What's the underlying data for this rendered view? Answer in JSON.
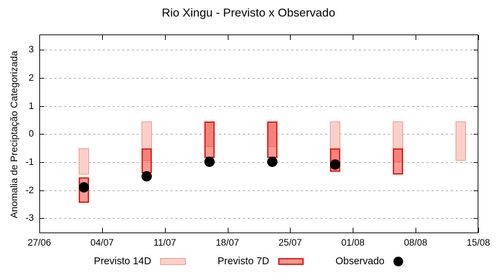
{
  "chart_data": {
    "type": "bar",
    "subtype": "range-bars-with-observed-points",
    "title": "Rio Xingu - Previsto x Observado",
    "ylabel": "Anomalia de Preciptação Categorizada",
    "xlabel": "",
    "ylim": [
      -3.55,
      3.55
    ],
    "yticks": [
      3,
      2,
      1,
      0,
      -1,
      -2,
      -3
    ],
    "xtick_labels": [
      "27/06",
      "04/07",
      "11/07",
      "18/07",
      "25/07",
      "01/08",
      "08/08",
      "15/08"
    ],
    "xtick_interval_days": 7,
    "grid": "horizontal-dotted",
    "legend_position": "bottom",
    "colors": {
      "prev14_fill": "#fbcfc9",
      "prev14_border": "#f0988e",
      "prev7_fill": "rgba(240,55,45,0.5)",
      "prev7_border": "#e8231d",
      "observado": "#000000",
      "grid": "#a9a9a9",
      "axis": "#000000"
    },
    "series": [
      {
        "name": "Previsto 14D",
        "key": "prev14",
        "type": "range-bar"
      },
      {
        "name": "Previsto 7D",
        "key": "prev7",
        "type": "range-bar"
      },
      {
        "name": "Observado",
        "key": "obs",
        "type": "scatter"
      }
    ],
    "points": [
      {
        "date_est": "02/07",
        "day": 5,
        "prev14": [
          -1.45,
          -0.5
        ],
        "prev7": [
          -2.45,
          -1.55
        ],
        "obs": -1.9
      },
      {
        "date_est": "09/07",
        "day": 12,
        "prev14": [
          -0.95,
          0.45
        ],
        "prev7": [
          -1.4,
          -0.5
        ],
        "obs": -1.5
      },
      {
        "date_est": "16/07",
        "day": 19,
        "prev14": [
          -0.45,
          0.45
        ],
        "prev7": [
          -0.85,
          0.45
        ],
        "obs": -1.0
      },
      {
        "date_est": "23/07",
        "day": 26,
        "prev14": [
          -0.45,
          0.45
        ],
        "prev7": [
          -0.85,
          0.45
        ],
        "obs": -1.0
      },
      {
        "date_est": "30/07",
        "day": 33,
        "prev14": [
          -1.0,
          0.45
        ],
        "prev7": [
          -1.35,
          -0.5
        ],
        "obs": -1.1
      },
      {
        "date_est": "06/08",
        "day": 40,
        "prev14": [
          -1.0,
          0.45
        ],
        "prev7": [
          -1.45,
          -0.5
        ],
        "obs": null
      },
      {
        "date_est": "13/08",
        "day": 47,
        "prev14": [
          -0.95,
          0.45
        ],
        "prev7": null,
        "obs": null
      }
    ]
  }
}
